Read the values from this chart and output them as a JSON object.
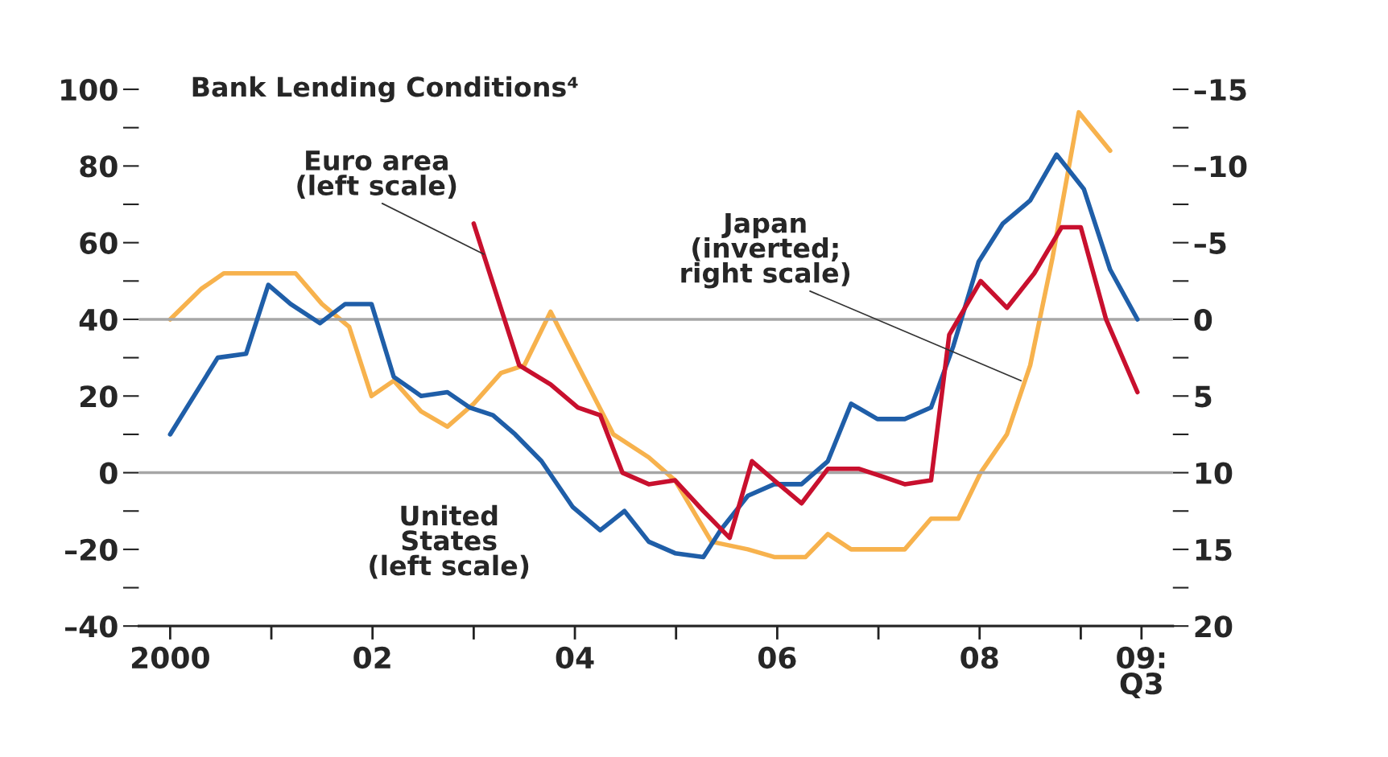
{
  "chart_data": {
    "type": "line",
    "title": "Bank Lending Conditions⁴",
    "annotations": [
      {
        "text": "Euro area\n(left scale)",
        "x": 2003.1,
        "y": 57
      },
      {
        "text": "Japan\n(inverted;\nright scale)",
        "x": 2008.41,
        "y": 24
      },
      "United\nStates\n(left scale)"
    ],
    "series": [
      {
        "color": "#1f5ea8",
        "x": [
          2000.0,
          2000.47,
          2000.75,
          2000.97,
          2001.19,
          2001.48,
          2001.73,
          2001.99,
          2002.21,
          2002.48,
          2002.74,
          2002.96,
          2003.19,
          2003.41,
          2003.67,
          2003.98,
          2004.25,
          2004.49,
          2004.73,
          2004.99,
          2005.27,
          2005.44,
          2005.71,
          2005.97,
          2006.24,
          2006.5,
          2006.73,
          2006.99,
          2007.26,
          2007.52,
          2007.74,
          2007.99,
          2008.23,
          2008.5,
          2008.76,
          2009.03,
          2009.29,
          2009.56
        ],
        "values": [
          10,
          30,
          31,
          49,
          44,
          39,
          44,
          44,
          25,
          20,
          21,
          17,
          15,
          10,
          3,
          -9,
          -15,
          -10,
          -18,
          -21,
          -22,
          -15,
          -6,
          -3,
          -3,
          3,
          18,
          14,
          14,
          17,
          33,
          55,
          65,
          71,
          83,
          74,
          53,
          40
        ]
      },
      {
        "color": "#c8102e",
        "x": [
          2003.0,
          2003.45,
          2003.76,
          2004.03,
          2004.25,
          2004.47,
          2004.73,
          2004.99,
          2005.27,
          2005.53,
          2005.75,
          2005.97,
          2006.24,
          2006.5,
          2006.81,
          2007.04,
          2007.26,
          2007.52,
          2007.7,
          2008.01,
          2008.27,
          2008.54,
          2008.81,
          2009.0,
          2009.25,
          2009.56
        ],
        "values": [
          65,
          28,
          23,
          17,
          15,
          0,
          -3,
          -2,
          -10,
          -17,
          3,
          -2,
          -8,
          1,
          1,
          -1,
          -3,
          -2,
          36,
          50,
          43,
          52,
          64,
          64,
          40,
          21
        ]
      },
      {
        "color": "#f7b24d",
        "axis": "y2",
        "x": [
          2000.0,
          2000.31,
          2000.53,
          2001.24,
          2001.5,
          2001.77,
          2001.99,
          2002.21,
          2002.48,
          2002.74,
          2003.0,
          2003.27,
          2003.5,
          2003.76,
          2004.03,
          2004.38,
          2004.73,
          2004.99,
          2005.35,
          2005.71,
          2005.97,
          2006.28,
          2006.5,
          2006.73,
          2006.99,
          2007.26,
          2007.52,
          2007.79,
          2008.01,
          2008.27,
          2008.5,
          2008.72,
          2008.98,
          2009.29
        ],
        "values": [
          0,
          -2,
          -3,
          -3,
          -1,
          0.5,
          5,
          4,
          6,
          7,
          5.5,
          3.5,
          3,
          -0.5,
          3,
          7.5,
          9,
          10.5,
          14.5,
          15,
          15.5,
          15.5,
          14,
          15,
          15,
          15,
          13,
          13,
          10,
          7.5,
          3,
          -4,
          -13.5,
          -11
        ]
      }
    ],
    "xlim": [
      1999.69,
      2009.91
    ],
    "xticks": [
      2000,
      {
        "value": 2002,
        "label": "02"
      },
      {
        "value": 2004,
        "label": "04"
      },
      {
        "value": 2006,
        "label": "06"
      },
      {
        "value": 2008,
        "label": "08"
      },
      {
        "value": 2009.6,
        "label": "09:\nQ3"
      }
    ],
    "ylim": [
      -40,
      100
    ],
    "yticks": [
      {
        "value": -40,
        "label": "–40"
      },
      {
        "value": -20,
        "label": "–20"
      },
      0,
      20,
      40,
      60,
      80,
      100
    ],
    "y2lim": [
      20,
      -15
    ],
    "y2ticks": [
      20,
      15,
      10,
      5,
      0,
      {
        "value": -5,
        "label": "–5"
      },
      {
        "value": -10,
        "label": "–10"
      },
      {
        "value": -15,
        "label": "–15"
      }
    ],
    "ref_lines": [
      {
        "axis": "y",
        "value": 40,
        "color": "#a6a6a6"
      },
      {
        "axis": "y",
        "value": 0,
        "color": "#a6a6a6"
      }
    ]
  }
}
